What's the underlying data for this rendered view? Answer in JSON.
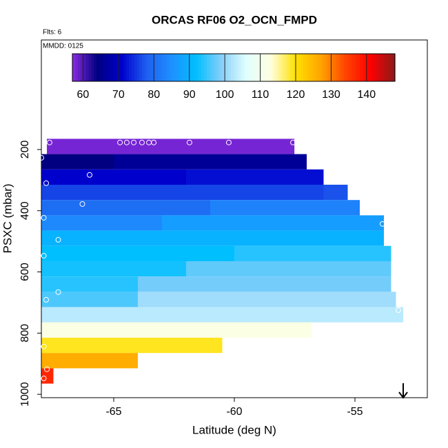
{
  "chart_data": {
    "type": "heatmap",
    "title": "ORCAS RF06 O2_OCN_FMPD",
    "annotations": [
      "Flts: 6",
      "MMDD: 0125"
    ],
    "xlabel": "Latitude (deg N)",
    "ylabel": "PSXC (mbar)",
    "xlim": [
      -68,
      -52
    ],
    "xticks": [
      -65,
      -60,
      -55
    ],
    "ylim": [
      1011,
      -158
    ],
    "yticks": [
      200,
      400,
      600,
      800,
      1000
    ],
    "colorbar": {
      "lim": [
        57,
        148
      ],
      "ticks": [
        60,
        70,
        80,
        90,
        100,
        110,
        120,
        130,
        140
      ],
      "colors": [
        "#8a2be2",
        "#000080",
        "#0000cd",
        "#1e60f0",
        "#1e90ff",
        "#00bfff",
        "#87cefa",
        "#e0ffff",
        "#ffffe0",
        "#ffe000",
        "#ffa500",
        "#ff4500",
        "#ff0000",
        "#8b1a1a"
      ]
    },
    "rows": [
      {
        "p": [
          165,
          215
        ],
        "segments": [
          {
            "lat": [
              -67.77,
              -57.51
            ],
            "value": 58
          }
        ]
      },
      {
        "p": [
          215,
          265
        ],
        "segments": [
          {
            "lat": [
              -68,
              -65
            ],
            "value": 64
          },
          {
            "lat": [
              -65,
              -57.0
            ],
            "value": 66
          }
        ]
      },
      {
        "p": [
          265,
          315
        ],
        "segments": [
          {
            "lat": [
              -68,
              -62
            ],
            "value": 71
          },
          {
            "lat": [
              -62,
              -56.3
            ],
            "value": 72
          }
        ]
      },
      {
        "p": [
          315,
          365
        ],
        "segments": [
          {
            "lat": [
              -68,
              -56.3
            ],
            "value": 76
          },
          {
            "lat": [
              -56.3,
              -55.3
            ],
            "value": 77
          }
        ]
      },
      {
        "p": [
          365,
          415
        ],
        "segments": [
          {
            "lat": [
              -68,
              -61
            ],
            "value": 80
          },
          {
            "lat": [
              -61,
              -54.8
            ],
            "value": 83
          }
        ]
      },
      {
        "p": [
          415,
          465
        ],
        "segments": [
          {
            "lat": [
              -68,
              -63
            ],
            "value": 84
          },
          {
            "lat": [
              -63,
              -53.8
            ],
            "value": 87
          }
        ]
      },
      {
        "p": [
          465,
          515
        ],
        "segments": [
          {
            "lat": [
              -68,
              -53.8
            ],
            "value": 90
          }
        ]
      },
      {
        "p": [
          515,
          565
        ],
        "segments": [
          {
            "lat": [
              -68,
              -60
            ],
            "value": 92
          },
          {
            "lat": [
              -60,
              -53.5
            ],
            "value": 94
          }
        ]
      },
      {
        "p": [
          565,
          615
        ],
        "segments": [
          {
            "lat": [
              -68,
              -62
            ],
            "value": 93
          },
          {
            "lat": [
              -62,
              -53.5
            ],
            "value": 97
          }
        ]
      },
      {
        "p": [
          615,
          665
        ],
        "segments": [
          {
            "lat": [
              -68,
              -64
            ],
            "value": 94
          },
          {
            "lat": [
              -64,
              -53.5
            ],
            "value": 98
          }
        ]
      },
      {
        "p": [
          665,
          715
        ],
        "segments": [
          {
            "lat": [
              -68,
              -64
            ],
            "value": 96
          },
          {
            "lat": [
              -64,
              -53.3
            ],
            "value": 101
          }
        ]
      },
      {
        "p": [
          715,
          765
        ],
        "segments": [
          {
            "lat": [
              -68,
              -53.0
            ],
            "value": 103
          }
        ]
      },
      {
        "p": [
          765,
          815
        ],
        "segments": [
          {
            "lat": [
              -68,
              -56.8
            ],
            "value": 112
          }
        ]
      },
      {
        "p": [
          815,
          865
        ],
        "segments": [
          {
            "lat": [
              -68,
              -60.5
            ],
            "value": 119
          }
        ]
      },
      {
        "p": [
          865,
          915
        ],
        "segments": [
          {
            "lat": [
              -68,
              -64.0
            ],
            "value": 126
          }
        ]
      },
      {
        "p": [
          915,
          965
        ],
        "segments": [
          {
            "lat": [
              -68,
              -67.5
            ],
            "value": 137
          }
        ]
      }
    ],
    "points": {
      "lat": [
        -67.66,
        -64.74,
        -64.46,
        -64.17,
        -63.83,
        -63.54,
        -63.34,
        -61.86,
        -60.23,
        -57.57,
        -68.0,
        -67.8,
        -66.0,
        -66.3,
        -67.9,
        -67.3,
        -67.9,
        -67.3,
        -67.8,
        -53.86,
        -53.2,
        -67.9,
        -67.77,
        -67.9
      ],
      "p": [
        177,
        177,
        177,
        177,
        177,
        177,
        177,
        177,
        177,
        177,
        227,
        310,
        283,
        378,
        423,
        495,
        547,
        666,
        691,
        443,
        725,
        844,
        918,
        948
      ]
    }
  }
}
